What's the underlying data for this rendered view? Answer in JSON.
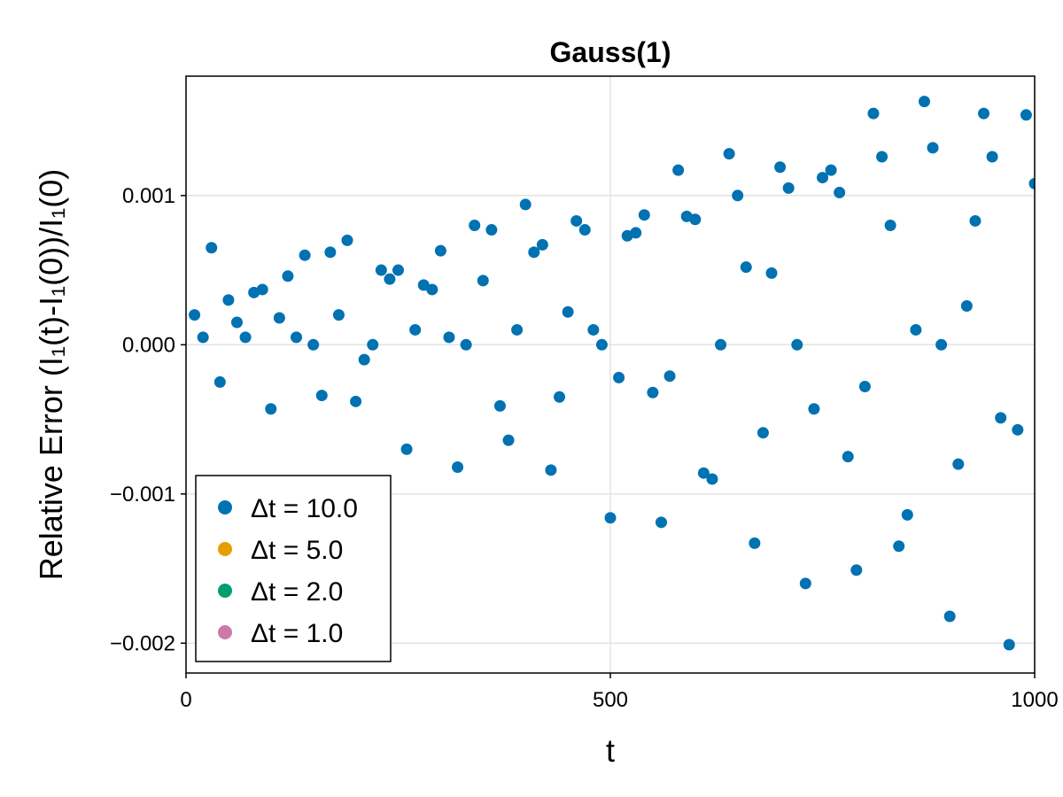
{
  "chart_data": {
    "type": "scatter",
    "title": "Gauss(1)",
    "xlabel": "t",
    "ylabel": "Relative Error (I₁(t)-I₁(0))/I₁(0)",
    "xlim": [
      0,
      1000
    ],
    "ylim": [
      -0.0022,
      0.0018
    ],
    "xticks": [
      0,
      500,
      1000
    ],
    "xtick_labels": [
      "0",
      "500",
      "1000"
    ],
    "yticks": [
      -0.002,
      -0.001,
      0.0,
      0.001
    ],
    "ytick_labels": [
      "−0.002",
      "−0.001",
      "0.000",
      "0.001"
    ],
    "grid": true,
    "legend_position": "bottom-left",
    "series": [
      {
        "name": "Δt = 10.0",
        "color": "#0072b2",
        "x": [
          10,
          20,
          30,
          40,
          50,
          60,
          70,
          80,
          90,
          100,
          110,
          120,
          130,
          140,
          150,
          160,
          170,
          180,
          190,
          200,
          210,
          220,
          230,
          240,
          250,
          260,
          270,
          280,
          290,
          300,
          310,
          320,
          330,
          340,
          350,
          360,
          370,
          380,
          390,
          400,
          410,
          420,
          430,
          440,
          450,
          460,
          470,
          480,
          490,
          500,
          510,
          520,
          530,
          540,
          550,
          560,
          570,
          580,
          590,
          600,
          610,
          620,
          630,
          640,
          650,
          660,
          670,
          680,
          690,
          700,
          710,
          720,
          730,
          740,
          750,
          760,
          770,
          780,
          790,
          800,
          810,
          820,
          830,
          840,
          850,
          860,
          870,
          880,
          890,
          900,
          910,
          920,
          930,
          940,
          950,
          960,
          970,
          980,
          990,
          1000
        ],
        "y": [
          0.0002,
          5e-05,
          0.00065,
          -0.00025,
          0.0003,
          0.00015,
          5e-05,
          0.00035,
          0.00037,
          -0.00043,
          0.00018,
          0.00046,
          5e-05,
          0.0006,
          0.0,
          -0.00034,
          0.00062,
          0.0002,
          0.0007,
          -0.00038,
          -0.0001,
          0.0,
          0.0005,
          0.00044,
          0.0005,
          -0.0007,
          0.0001,
          0.0004,
          0.00037,
          0.00063,
          5e-05,
          -0.00082,
          0.0,
          0.0008,
          0.00043,
          0.00077,
          -0.00041,
          -0.00064,
          0.0001,
          0.00094,
          0.00062,
          0.00067,
          -0.00084,
          -0.00035,
          0.00022,
          0.00083,
          0.00077,
          0.0001,
          0.0,
          -0.00116,
          -0.00022,
          0.00073,
          0.00075,
          0.00087,
          -0.00032,
          -0.00119,
          -0.00021,
          0.00117,
          0.00086,
          0.00084,
          -0.00086,
          -0.0009,
          0.0,
          0.00128,
          0.001,
          0.00052,
          -0.00133,
          -0.00059,
          0.00048,
          0.00119,
          0.00105,
          0.0,
          -0.0016,
          -0.00043,
          0.00112,
          0.00117,
          0.00102,
          -0.00075,
          -0.00151,
          -0.00028,
          0.00155,
          0.00126,
          0.0008,
          -0.00135,
          -0.00114,
          0.0001,
          0.00163,
          0.00132,
          0.0,
          -0.00182,
          -0.0008,
          0.00026,
          0.00083,
          0.00155,
          0.00126,
          -0.00049,
          -0.00201,
          -0.00057,
          0.00154,
          0.00108
        ]
      },
      {
        "name": "Δt = 5.0",
        "color": "#e69f00",
        "x": [],
        "y": []
      },
      {
        "name": "Δt = 2.0",
        "color": "#009e73",
        "x": [],
        "y": []
      },
      {
        "name": "Δt = 1.0",
        "color": "#cc79a7",
        "x": [],
        "y": []
      }
    ]
  }
}
